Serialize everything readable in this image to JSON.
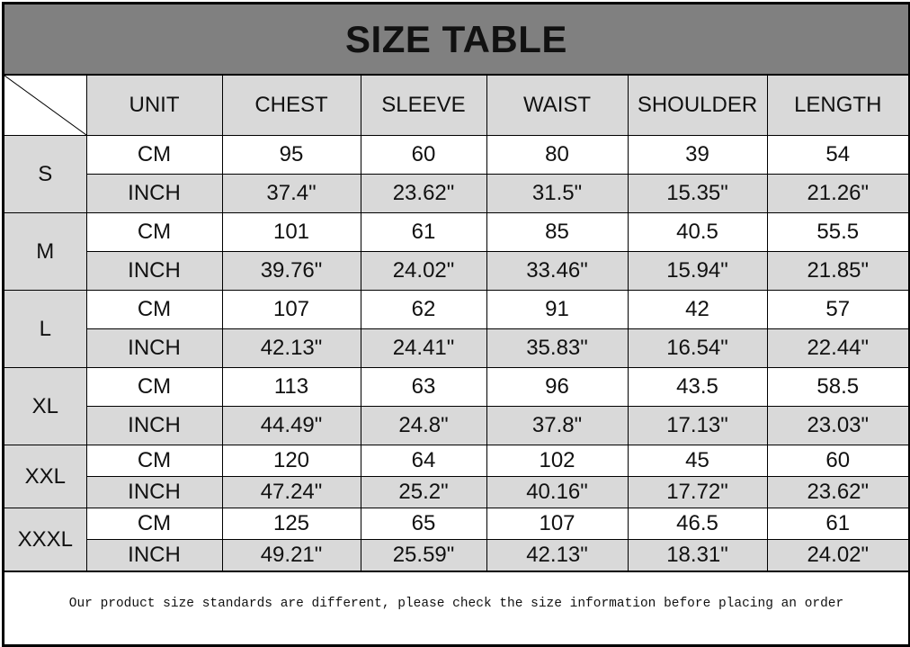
{
  "title": "SIZE TABLE",
  "headers": [
    "UNIT",
    "CHEST",
    "SLEEVE",
    "WAIST",
    "SHOULDER",
    "LENGTH"
  ],
  "sizes": [
    {
      "size": "S",
      "cm": [
        "CM",
        "95",
        "60",
        "80",
        "39",
        "54"
      ],
      "inch": [
        "INCH",
        "37.4\"",
        "23.62\"",
        "31.5\"",
        "15.35\"",
        "21.26\""
      ]
    },
    {
      "size": "M",
      "cm": [
        "CM",
        "101",
        "61",
        "85",
        "40.5",
        "55.5"
      ],
      "inch": [
        "INCH",
        "39.76\"",
        "24.02\"",
        "33.46\"",
        "15.94\"",
        "21.85\""
      ]
    },
    {
      "size": "L",
      "cm": [
        "CM",
        "107",
        "62",
        "91",
        "42",
        "57"
      ],
      "inch": [
        "INCH",
        "42.13\"",
        "24.41\"",
        "35.83\"",
        "16.54\"",
        "22.44\""
      ]
    },
    {
      "size": "XL",
      "cm": [
        "CM",
        "113",
        "63",
        "96",
        "43.5",
        "58.5"
      ],
      "inch": [
        "INCH",
        "44.49\"",
        "24.8\"",
        "37.8\"",
        "17.13\"",
        "23.03\""
      ]
    },
    {
      "size": "XXL",
      "cm": [
        "CM",
        "120",
        "64",
        "102",
        "45",
        "60"
      ],
      "inch": [
        "INCH",
        "47.24\"",
        "25.2\"",
        "40.16\"",
        "17.72\"",
        "23.62\""
      ]
    },
    {
      "size": "XXXL",
      "cm": [
        "CM",
        "125",
        "65",
        "107",
        "46.5",
        "61"
      ],
      "inch": [
        "INCH",
        "49.21\"",
        "25.59\"",
        "42.13\"",
        "18.31\"",
        "24.02\""
      ]
    }
  ],
  "footer": "Our product size standards are different, please check the size information before placing an order",
  "colors": {
    "title_bg": "#808080",
    "cell_gray": "#d9d9d9",
    "border": "#000000"
  }
}
